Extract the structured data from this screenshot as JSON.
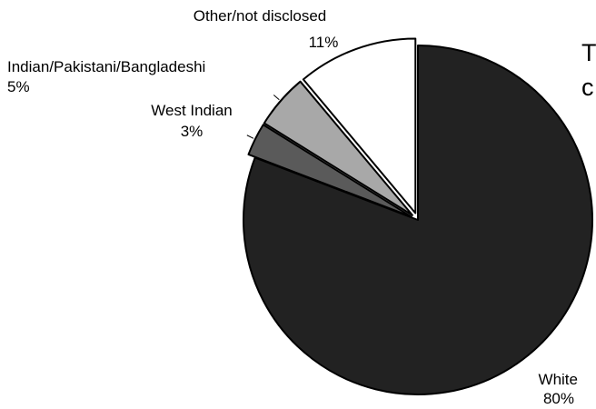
{
  "chart_data": {
    "type": "pie",
    "title": "",
    "slices": [
      {
        "label": "White",
        "value": 80,
        "pct_label": "80%",
        "color": "#222222",
        "exploded": false
      },
      {
        "label": "West Indian",
        "value": 3,
        "pct_label": "3%",
        "color": "#5a5a5a",
        "exploded": true
      },
      {
        "label": "Indian/Pakistani/Bangladeshi",
        "value": 5,
        "pct_label": "5%",
        "color": "#a8a8a8",
        "exploded": true
      },
      {
        "label": "Other/not disclosed",
        "value": 11,
        "pct_label": "11%",
        "color": "#ffffff",
        "exploded": true
      }
    ],
    "start_angle_deg": 0,
    "direction": "clockwise",
    "legend": "none"
  },
  "right_edge_text": [
    "T",
    "c"
  ]
}
